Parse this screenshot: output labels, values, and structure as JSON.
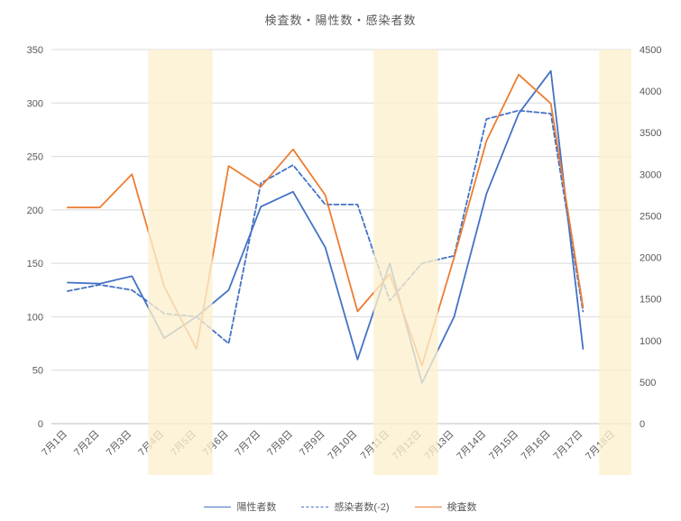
{
  "chart_data": {
    "type": "line",
    "title": "検査数・陽性数・感染者数",
    "categories": [
      "7月1日",
      "7月2日",
      "7月3日",
      "7月4日",
      "7月5日",
      "7月6日",
      "7月7日",
      "7月8日",
      "7月9日",
      "7月10日",
      "7月11日",
      "7月12日",
      "7月13日",
      "7月14日",
      "7月15日",
      "7月16日",
      "7月17日",
      "7月18日"
    ],
    "series": [
      {
        "name": "陽性者数",
        "axis": "left",
        "style": "solid",
        "color": "#4472C4",
        "values": [
          132,
          131,
          138,
          80,
          100,
          125,
          203,
          217,
          165,
          60,
          150,
          38,
          100,
          215,
          290,
          330,
          70,
          null
        ]
      },
      {
        "name": "感染者数(-2)",
        "axis": "left",
        "style": "dashed",
        "color": "#4472C4",
        "values": [
          124,
          130,
          125,
          103,
          100,
          75,
          225,
          242,
          205,
          205,
          115,
          150,
          157,
          285,
          293,
          290,
          105,
          null
        ]
      },
      {
        "name": "検査数",
        "axis": "right",
        "style": "solid",
        "color": "#ED7D31",
        "values": [
          2600,
          2600,
          3000,
          1650,
          900,
          3100,
          2850,
          3300,
          2750,
          1350,
          1800,
          700,
          2000,
          3400,
          4200,
          3850,
          1400,
          null
        ]
      }
    ],
    "left_axis": {
      "min": 0,
      "max": 350,
      "step": 50,
      "ticks": [
        "0",
        "50",
        "100",
        "150",
        "200",
        "250",
        "300",
        "350"
      ]
    },
    "right_axis": {
      "min": 0,
      "max": 4500,
      "step": 500,
      "ticks": [
        "0",
        "500",
        "1000",
        "1500",
        "2000",
        "2500",
        "3000",
        "3500",
        "4000",
        "4500"
      ]
    },
    "highlight_bands": {
      "color": "#FBEFCE",
      "opacity": 0.78,
      "ranges": [
        {
          "from": "7月4日",
          "to": "7月5日"
        },
        {
          "from": "7月11日",
          "to": "7月12日"
        },
        {
          "from": "7月18日",
          "to": "7月18日"
        }
      ]
    },
    "colors": {
      "grid": "#D9D9D9",
      "axis_line": "#BFBFBF",
      "tick_label": "#595959",
      "title": "#595959"
    },
    "legend_position": "bottom",
    "grid": true
  }
}
